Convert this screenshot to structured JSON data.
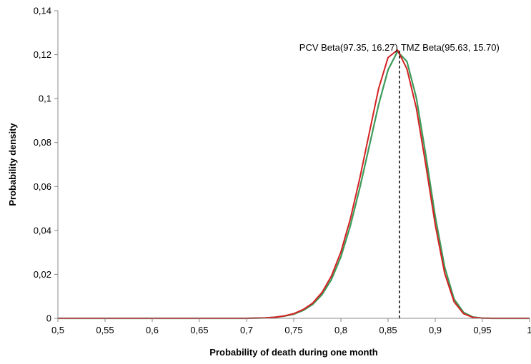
{
  "chart_data": {
    "type": "line",
    "title": "",
    "xlabel": "Probability of death during one month",
    "ylabel": "Probability density",
    "xlim": [
      0.5,
      1
    ],
    "ylim": [
      0,
      0.14
    ],
    "x_ticks": [
      "0,5",
      "0,55",
      "0,6",
      "0,65",
      "0,7",
      "0,75",
      "0,8",
      "0,85",
      "0,9",
      "0,95",
      "1"
    ],
    "x_tick_values": [
      0.5,
      0.55,
      0.6,
      0.65,
      0.7,
      0.75,
      0.8,
      0.85,
      0.9,
      0.95,
      1.0
    ],
    "y_ticks": [
      "0",
      "0,02",
      "0,04",
      "0,06",
      "0,08",
      "0,1",
      "0,12",
      "0,14"
    ],
    "y_tick_values": [
      0,
      0.02,
      0.04,
      0.06,
      0.08,
      0.1,
      0.12,
      0.14
    ],
    "grid": false,
    "series": [
      {
        "name": "TMZ Beta(95.63, 15.70)",
        "color": "#3c9a5a",
        "x": [
          0.5,
          0.7,
          0.72,
          0.73,
          0.74,
          0.75,
          0.76,
          0.77,
          0.78,
          0.79,
          0.8,
          0.81,
          0.82,
          0.83,
          0.84,
          0.85,
          0.86,
          0.87,
          0.88,
          0.89,
          0.9,
          0.91,
          0.92,
          0.93,
          0.94,
          0.95,
          0.96,
          1.0
        ],
        "y": [
          0,
          0,
          0.0002,
          0.0005,
          0.001,
          0.0019,
          0.0036,
          0.0063,
          0.0108,
          0.0177,
          0.028,
          0.0421,
          0.0593,
          0.0782,
          0.0973,
          0.1131,
          0.1214,
          0.1169,
          0.1003,
          0.0743,
          0.0464,
          0.0233,
          0.0087,
          0.0027,
          0.0006,
          0.0001,
          0,
          0
        ]
      },
      {
        "name": "PCV Beta(97.35, 16.27)",
        "color": "#d42020",
        "x": [
          0.5,
          0.7,
          0.72,
          0.73,
          0.74,
          0.75,
          0.76,
          0.77,
          0.78,
          0.79,
          0.8,
          0.81,
          0.82,
          0.83,
          0.84,
          0.85,
          0.86,
          0.87,
          0.88,
          0.89,
          0.9,
          0.91,
          0.92,
          0.93,
          0.94,
          0.95,
          0.96,
          1.0
        ],
        "y": [
          0,
          0,
          0.0002,
          0.0005,
          0.0011,
          0.0021,
          0.004,
          0.0069,
          0.0118,
          0.0193,
          0.0302,
          0.0452,
          0.0637,
          0.0842,
          0.1046,
          0.1187,
          0.1221,
          0.1135,
          0.0956,
          0.0698,
          0.0426,
          0.0205,
          0.0075,
          0.0021,
          0.0004,
          0.0001,
          0,
          0
        ]
      }
    ],
    "annotations": [
      {
        "text": "PCV Beta(97.35, 16.27)",
        "x": 0.862
      },
      {
        "text": "TMZ Beta(95.63, 15.70)",
        "x": 0.862
      }
    ],
    "reference_line": {
      "x": 0.862,
      "y_top": 0.122,
      "style": "dashed"
    }
  }
}
